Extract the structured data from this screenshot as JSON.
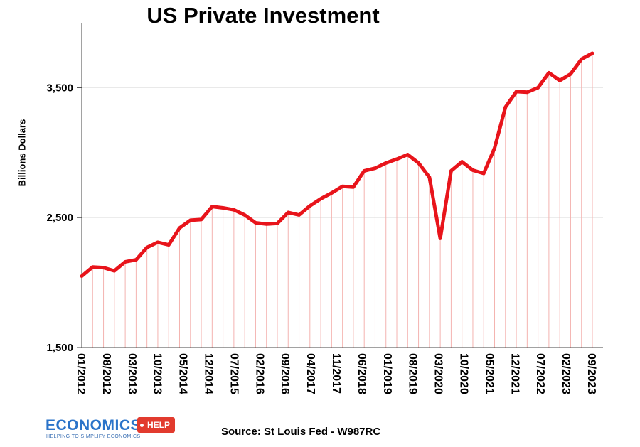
{
  "chart_data": {
    "type": "line",
    "title": "US Private Investment",
    "xlabel": "",
    "ylabel": "Billions Dollars",
    "ylim": [
      1500,
      4000
    ],
    "yticks": [
      1500,
      2500,
      3500
    ],
    "ytick_labels": [
      "1,500",
      "2,500",
      "3,500"
    ],
    "x_tick_labels": [
      "01/2012",
      "08/2012",
      "03/2013",
      "10/2013",
      "05/2014",
      "12/2014",
      "07/2015",
      "02/2016",
      "09/2016",
      "04/2017",
      "11/2017",
      "06/2018",
      "01/2019",
      "08/2019",
      "03/2020",
      "10/2020",
      "05/2021",
      "12/2021",
      "07/2022",
      "02/2023",
      "09/2023"
    ],
    "series": [
      {
        "name": "US Private Investment",
        "color": "#e8141b",
        "values": [
          2050,
          2120,
          2115,
          2090,
          2160,
          2175,
          2270,
          2310,
          2290,
          2420,
          2480,
          2485,
          2585,
          2575,
          2560,
          2520,
          2460,
          2450,
          2455,
          2540,
          2520,
          2590,
          2645,
          2690,
          2740,
          2735,
          2860,
          2880,
          2920,
          2950,
          2985,
          2920,
          2810,
          2340,
          2860,
          2930,
          2865,
          2840,
          3035,
          3350,
          3470,
          3465,
          3500,
          3615,
          3555,
          3605,
          3720,
          3765
        ]
      }
    ],
    "grid": "horizontal at major ticks, vertical drop lines at each data point"
  },
  "source": "Source: St Louis Fed - W987RC",
  "logo": {
    "word": "ECONOMICS",
    "tag": "HELP",
    "tagline": "HELPING TO SIMPLIFY ECONOMICS",
    "primary_color": "#2a73c9",
    "accent_color": "#e23b2e"
  }
}
